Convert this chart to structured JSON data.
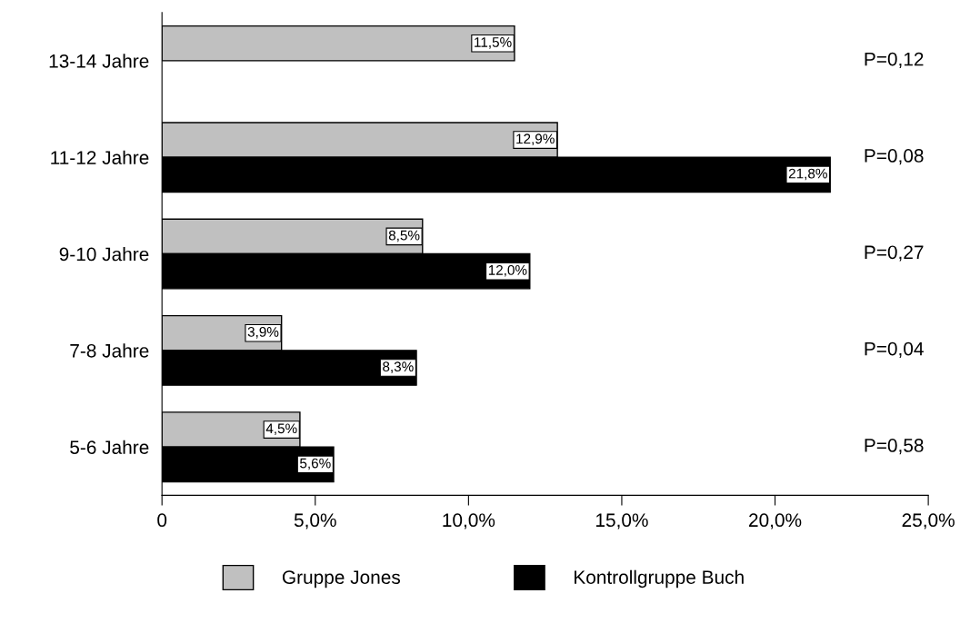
{
  "chart_data": {
    "type": "bar",
    "orientation": "horizontal",
    "categories": [
      "13-14 Jahre",
      "11-12 Jahre",
      "9-10 Jahre",
      "7-8 Jahre",
      "5-6 Jahre"
    ],
    "series": [
      {
        "name": "Gruppe Jones",
        "color": "#c0c0c0",
        "values": [
          11.5,
          12.9,
          8.5,
          3.9,
          4.5
        ],
        "value_labels": [
          "11,5%",
          "12,9%",
          "8,5%",
          "3,9%",
          "4,5%"
        ]
      },
      {
        "name": "Kontrollgruppe Buch",
        "color": "#000000",
        "values": [
          null,
          21.8,
          12.0,
          8.3,
          5.6
        ],
        "value_labels": [
          null,
          "21,8%",
          "12,0%",
          "8,3%",
          "5,6%"
        ]
      }
    ],
    "xlim": [
      0,
      25
    ],
    "xticks": [
      0,
      {
        "value": 5,
        "label": "5,0%"
      },
      {
        "value": 10,
        "label": "10,0%"
      },
      {
        "value": 15,
        "label": "15,0%"
      },
      {
        "value": 20,
        "label": "20,0%"
      },
      {
        "value": 25,
        "label": "25,0%"
      }
    ],
    "annotations": [
      "P=0,12",
      "P=0,08",
      "P=0,27",
      "P=0,04",
      "P=0,58"
    ],
    "legend": "bottom",
    "grid": false
  }
}
